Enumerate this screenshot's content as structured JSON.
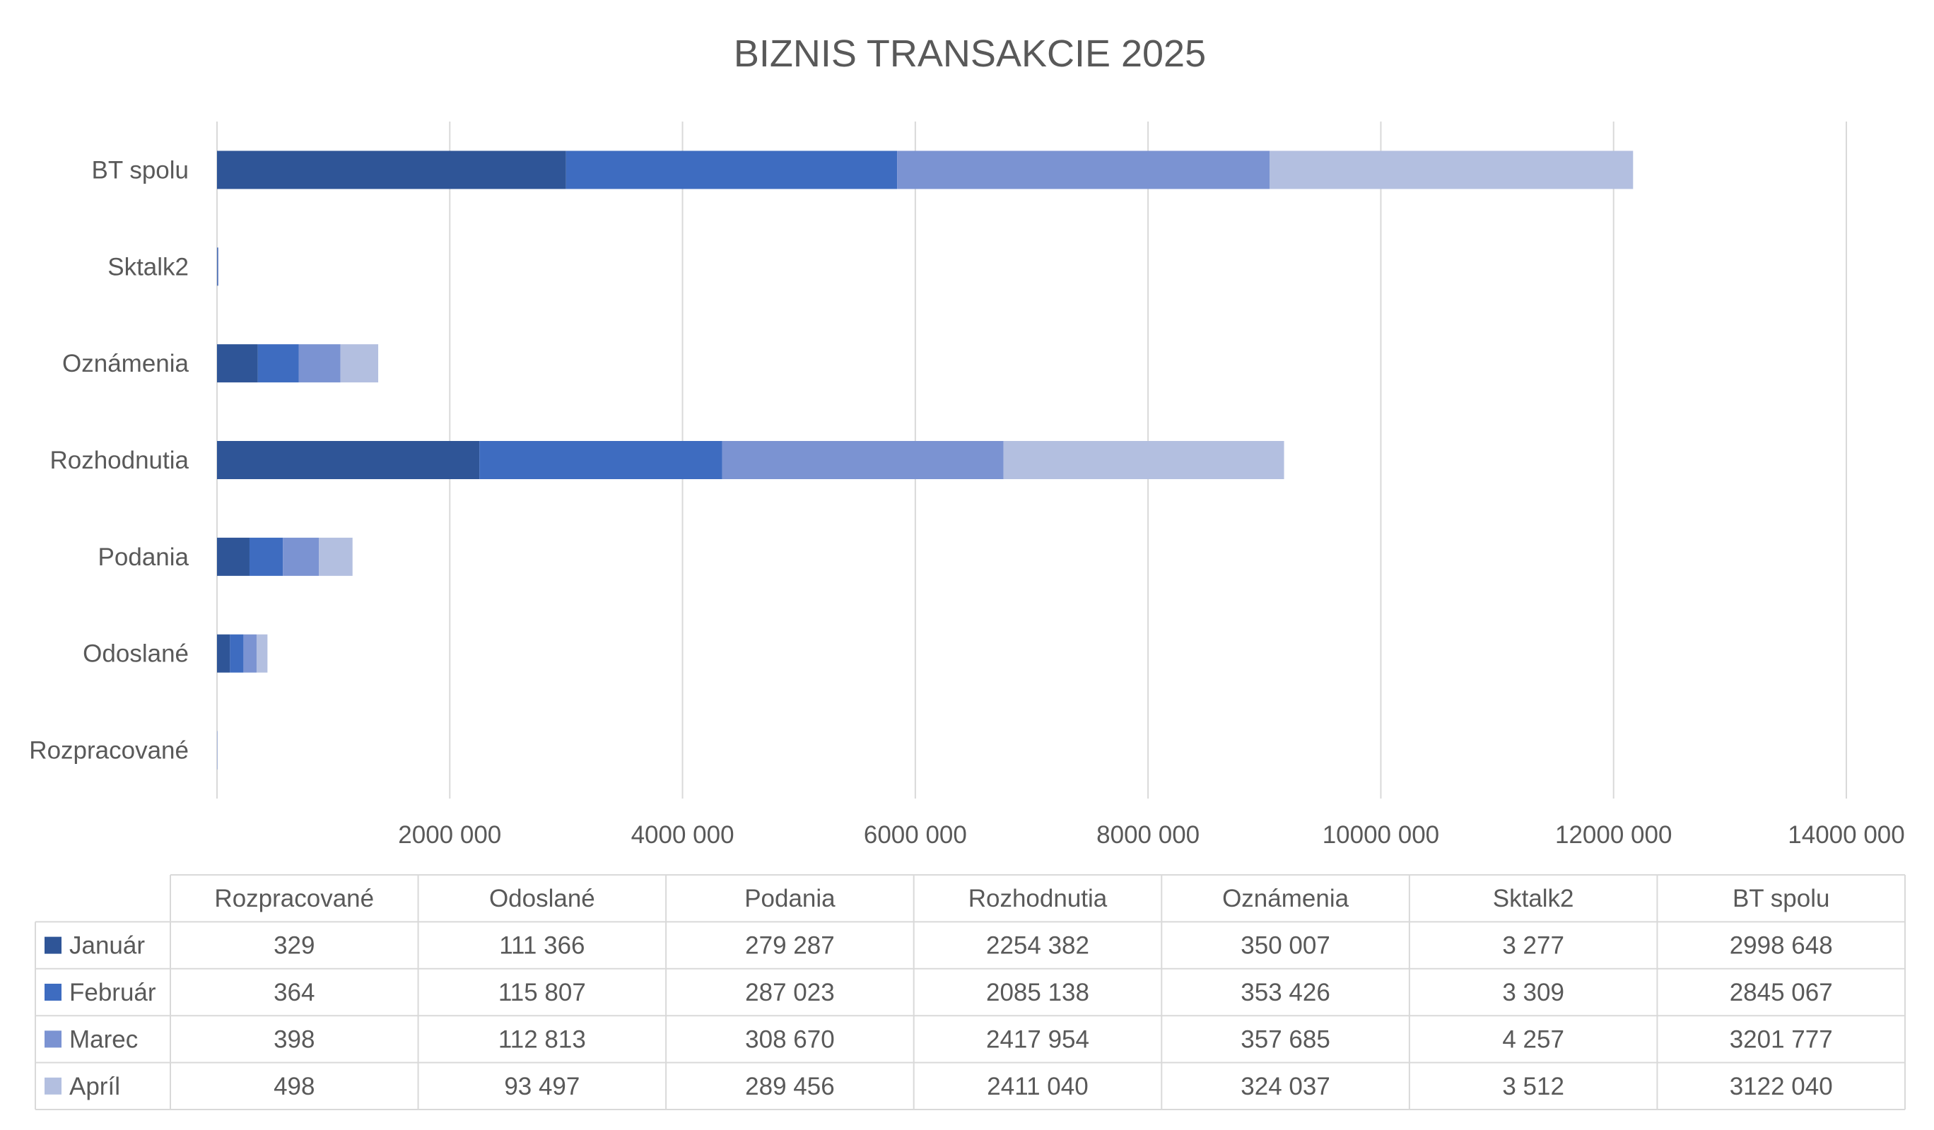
{
  "chart_data": {
    "type": "bar",
    "orientation": "horizontal",
    "stacked": true,
    "title": "BIZNIS TRANSAKCIE 2025",
    "categories": [
      "Rozpracované",
      "Odoslané",
      "Podania",
      "Rozhodnutia",
      "Oznámenia",
      "Sktalk2",
      "BT spolu"
    ],
    "series": [
      {
        "name": "Január",
        "color": "#2f5597",
        "values": [
          329,
          111366,
          279287,
          2254382,
          350007,
          3277,
          2998648
        ],
        "labels": [
          "329",
          "111 366",
          "279 287",
          "2254 382",
          "350 007",
          "3 277",
          "2998 648"
        ]
      },
      {
        "name": "Február",
        "color": "#3e6cc0",
        "values": [
          364,
          115807,
          287023,
          2085138,
          353426,
          3309,
          2845067
        ],
        "labels": [
          "364",
          "115 807",
          "287 023",
          "2085 138",
          "353 426",
          "3 309",
          "2845 067"
        ]
      },
      {
        "name": "Marec",
        "color": "#7b93d2",
        "values": [
          398,
          112813,
          308670,
          2417954,
          357685,
          4257,
          3201777
        ],
        "labels": [
          "398",
          "112 813",
          "308 670",
          "2417 954",
          "357 685",
          "4 257",
          "3201 777"
        ]
      },
      {
        "name": "Apríl",
        "color": "#b3bfe0",
        "values": [
          498,
          93497,
          289456,
          2411040,
          324037,
          3512,
          3122040
        ],
        "labels": [
          "498",
          "93 497",
          "289 456",
          "2411 040",
          "324 037",
          "3 512",
          "3122 040"
        ]
      }
    ],
    "xlim": [
      0,
      14000000
    ],
    "xticks": [
      0,
      2000000,
      4000000,
      6000000,
      8000000,
      10000000,
      12000000,
      14000000
    ],
    "xtick_labels": [
      "",
      "2000 000",
      "4000 000",
      "6000 000",
      "8000 000",
      "10000 000",
      "12000 000",
      "14000 000"
    ],
    "grid": "vertical",
    "legend": "data-table"
  }
}
